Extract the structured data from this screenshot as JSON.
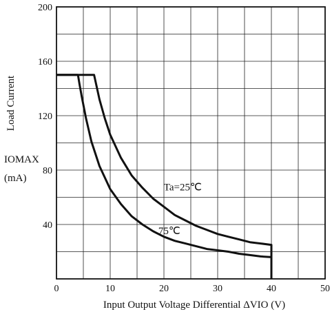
{
  "chart_data": {
    "type": "line",
    "xlabel": "Input Output Voltage Differential  ΔVIO  (V)",
    "ylabel_side": "Load Current",
    "ylabel_symbol": "IOMAX",
    "ylabel_unit": "(mA)",
    "xlim": [
      0,
      50
    ],
    "ylim": [
      0,
      200
    ],
    "x_ticks": [
      "0",
      "10",
      "20",
      "30",
      "40",
      "50"
    ],
    "y_ticks": [
      "40",
      "80",
      "120",
      "160",
      "200"
    ],
    "grid": true,
    "series": [
      {
        "name": "Ta=25℃",
        "points": [
          [
            0,
            150
          ],
          [
            7,
            150
          ],
          [
            7.5,
            141
          ],
          [
            8,
            132
          ],
          [
            9,
            118
          ],
          [
            10,
            106
          ],
          [
            12,
            89
          ],
          [
            14,
            76
          ],
          [
            16,
            67
          ],
          [
            18,
            59
          ],
          [
            20,
            53
          ],
          [
            22,
            47
          ],
          [
            24,
            43
          ],
          [
            26,
            39
          ],
          [
            28,
            36
          ],
          [
            30,
            33
          ],
          [
            32,
            31
          ],
          [
            34,
            29
          ],
          [
            36,
            27
          ],
          [
            38,
            26
          ],
          [
            40,
            25
          ],
          [
            40,
            0
          ]
        ]
      },
      {
        "name": "75℃",
        "points": [
          [
            0,
            150
          ],
          [
            4,
            150
          ],
          [
            4.3,
            143
          ],
          [
            4.7,
            134
          ],
          [
            5.5,
            118
          ],
          [
            6.5,
            101
          ],
          [
            8,
            83
          ],
          [
            10,
            66
          ],
          [
            12,
            55
          ],
          [
            14,
            46
          ],
          [
            16,
            40
          ],
          [
            18,
            35
          ],
          [
            20,
            31
          ],
          [
            22,
            28
          ],
          [
            24,
            26
          ],
          [
            26,
            24
          ],
          [
            28,
            22
          ],
          [
            30,
            21
          ],
          [
            32,
            20
          ],
          [
            34,
            18.5
          ],
          [
            36,
            17.5
          ],
          [
            38,
            16.5
          ],
          [
            40,
            16
          ],
          [
            40,
            0
          ]
        ]
      }
    ],
    "annotations": [
      {
        "text": "Ta=25℃",
        "x": 23.5,
        "y": 65
      },
      {
        "text": "75℃",
        "x": 21,
        "y": 33
      }
    ]
  }
}
